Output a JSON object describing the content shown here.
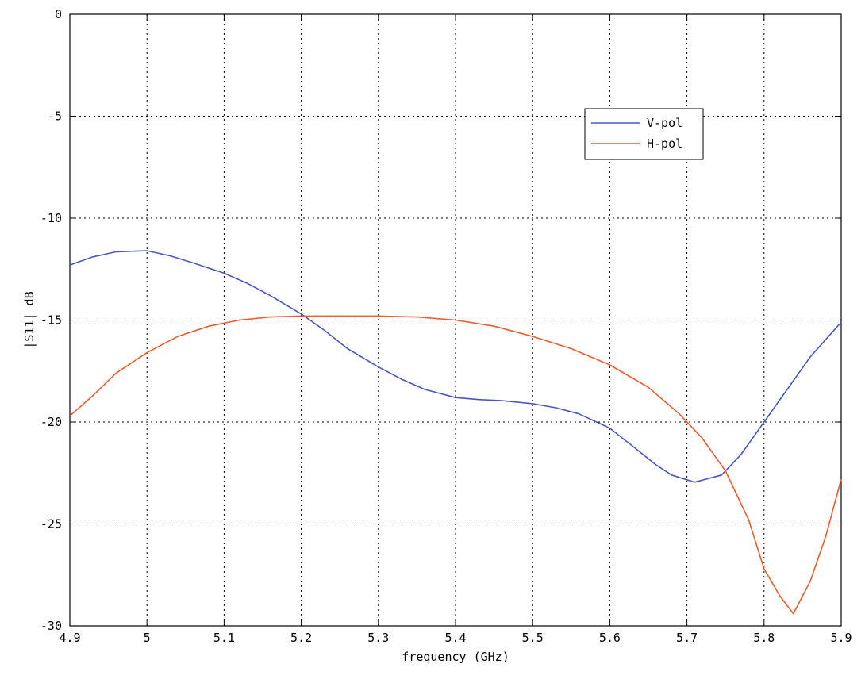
{
  "chart_data": {
    "type": "line",
    "title": "",
    "xlabel": "frequency (GHz)",
    "ylabel": "|S11| dB",
    "xlim": [
      4.9,
      5.9
    ],
    "ylim": [
      -30,
      0
    ],
    "xticks": [
      4.9,
      5.0,
      5.1,
      5.2,
      5.3,
      5.4,
      5.5,
      5.6,
      5.7,
      5.8,
      5.9
    ],
    "xtick_labels": [
      "4.9",
      "5",
      "5.1",
      "5.2",
      "5.3",
      "5.4",
      "5.5",
      "5.6",
      "5.7",
      "5.8",
      "5.9"
    ],
    "yticks": [
      0,
      -5,
      -10,
      -15,
      -20,
      -25,
      -30
    ],
    "ytick_labels": [
      "0",
      "-5",
      "-10",
      "-15",
      "-20",
      "-25",
      "-30"
    ],
    "grid": true,
    "legend_position": "top-right",
    "series": [
      {
        "name": "V-pol",
        "color": "#4a55c4",
        "x": [
          4.9,
          4.93,
          4.96,
          5.0,
          5.03,
          5.06,
          5.1,
          5.13,
          5.16,
          5.2,
          5.23,
          5.26,
          5.3,
          5.33,
          5.36,
          5.4,
          5.43,
          5.46,
          5.5,
          5.53,
          5.56,
          5.6,
          5.63,
          5.66,
          5.68,
          5.71,
          5.745,
          5.77,
          5.8,
          5.83,
          5.86,
          5.9
        ],
        "y": [
          -12.3,
          -11.9,
          -11.65,
          -11.6,
          -11.85,
          -12.2,
          -12.7,
          -13.2,
          -13.8,
          -14.7,
          -15.5,
          -16.4,
          -17.3,
          -17.9,
          -18.4,
          -18.8,
          -18.9,
          -18.95,
          -19.1,
          -19.3,
          -19.6,
          -20.3,
          -21.2,
          -22.1,
          -22.6,
          -22.95,
          -22.6,
          -21.6,
          -20.0,
          -18.4,
          -16.8,
          -15.1
        ]
      },
      {
        "name": "H-pol",
        "color": "#f05a2a",
        "x": [
          4.9,
          4.93,
          4.96,
          5.0,
          5.04,
          5.08,
          5.12,
          5.16,
          5.2,
          5.25,
          5.3,
          5.35,
          5.4,
          5.45,
          5.5,
          5.55,
          5.6,
          5.65,
          5.69,
          5.72,
          5.75,
          5.78,
          5.8,
          5.82,
          5.838,
          5.86,
          5.88,
          5.9
        ],
        "y": [
          -19.7,
          -18.7,
          -17.6,
          -16.6,
          -15.8,
          -15.3,
          -15.0,
          -14.85,
          -14.8,
          -14.8,
          -14.8,
          -14.85,
          -15.0,
          -15.3,
          -15.8,
          -16.4,
          -17.2,
          -18.3,
          -19.6,
          -20.8,
          -22.4,
          -24.8,
          -27.2,
          -28.5,
          -29.4,
          -27.8,
          -25.6,
          -22.8
        ]
      }
    ]
  }
}
